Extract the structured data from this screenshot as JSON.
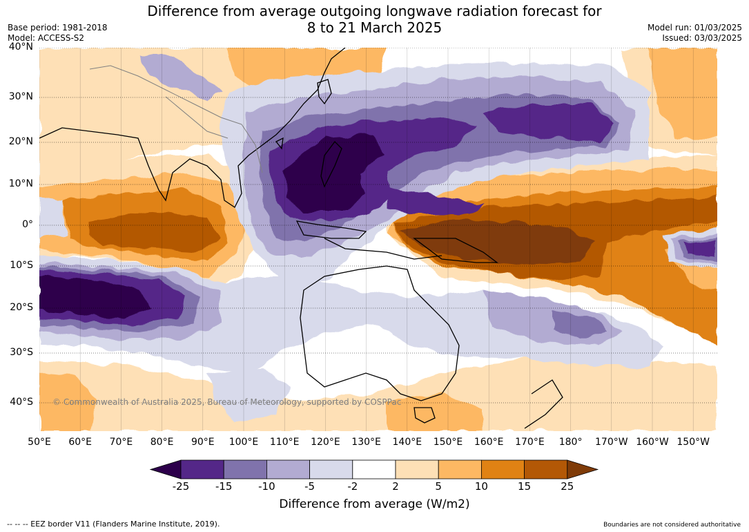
{
  "title_line1": "Difference from average outgoing longwave radiation forecast for",
  "title_line2": "8 to 21 March 2025",
  "base_period": "Base period: 1981-2018",
  "model": "Model: ACCESS-S2",
  "model_run": "Model run: 01/03/2025",
  "issued": "Issued: 03/03/2025",
  "copyright": "© Commonwealth of Australia 2025, Bureau of Meteorology, supported by COSPPac",
  "lat_labels": [
    "40°N",
    "30°N",
    "20°N",
    "10°N",
    "0°",
    "10°S",
    "20°S",
    "30°S",
    "40°S"
  ],
  "lon_labels": [
    "50°E",
    "60°E",
    "70°E",
    "80°E",
    "90°E",
    "100°E",
    "110°E",
    "120°E",
    "130°E",
    "140°E",
    "150°E",
    "160°E",
    "170°E",
    "180°",
    "170°W",
    "160°W",
    "150°W"
  ],
  "colorbar": {
    "ticks": [
      "-25",
      "-15",
      "-10",
      "-5",
      "-2",
      "2",
      "5",
      "10",
      "15",
      "25"
    ],
    "colors": [
      "#2d004b",
      "#542788",
      "#8073ac",
      "#b2abd2",
      "#d8daeb",
      "#ffffff",
      "#fee0b6",
      "#fdb863",
      "#e08214",
      "#b35806",
      "#7f3b08"
    ],
    "label": "Difference from average (W/m2)"
  },
  "footer_left": "--  --  -- EEZ border V11 (Flanders Marine Institute, 2019).",
  "footer_right": "Boundaries are not considered authoritative"
}
